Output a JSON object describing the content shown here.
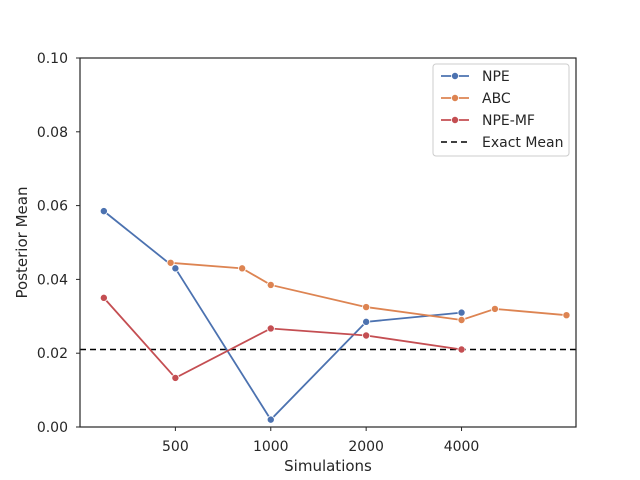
{
  "chart_data": {
    "type": "line",
    "title": "",
    "xlabel": "Simulations",
    "ylabel": "Posterior Mean",
    "ylim": [
      0.0,
      0.1
    ],
    "xlim": [
      0,
      10.4
    ],
    "xticks": [
      {
        "pos": 2,
        "label": "500"
      },
      {
        "pos": 4,
        "label": "1000"
      },
      {
        "pos": 6,
        "label": "2000"
      },
      {
        "pos": 8,
        "label": "4000"
      }
    ],
    "yticks": [
      {
        "value": 0.0,
        "label": "0.00"
      },
      {
        "value": 0.02,
        "label": "0.02"
      },
      {
        "value": 0.04,
        "label": "0.04"
      },
      {
        "value": 0.06,
        "label": "0.06"
      },
      {
        "value": 0.08,
        "label": "0.08"
      },
      {
        "value": 0.1,
        "label": "0.10"
      }
    ],
    "grid": false,
    "legend_position": "top-right",
    "series": [
      {
        "name": "NPE",
        "color": "#4c72b0",
        "x": [
          0.5,
          2,
          4,
          6,
          8
        ],
        "y": [
          0.0585,
          0.043,
          0.002,
          0.0285,
          0.031
        ]
      },
      {
        "name": "ABC",
        "color": "#dd8452",
        "x": [
          1.9,
          3.4,
          4,
          6,
          8,
          8.7,
          10.2
        ],
        "y": [
          0.0445,
          0.043,
          0.0385,
          0.0325,
          0.029,
          0.032,
          0.0303
        ]
      },
      {
        "name": "NPE-MF",
        "color": "#c44e52",
        "x": [
          0.5,
          2,
          4,
          6,
          8
        ],
        "y": [
          0.035,
          0.0133,
          0.0267,
          0.0248,
          0.021
        ]
      }
    ],
    "reference_line": {
      "name": "Exact Mean",
      "y": 0.021,
      "color": "#000000",
      "style": "dashed"
    }
  }
}
